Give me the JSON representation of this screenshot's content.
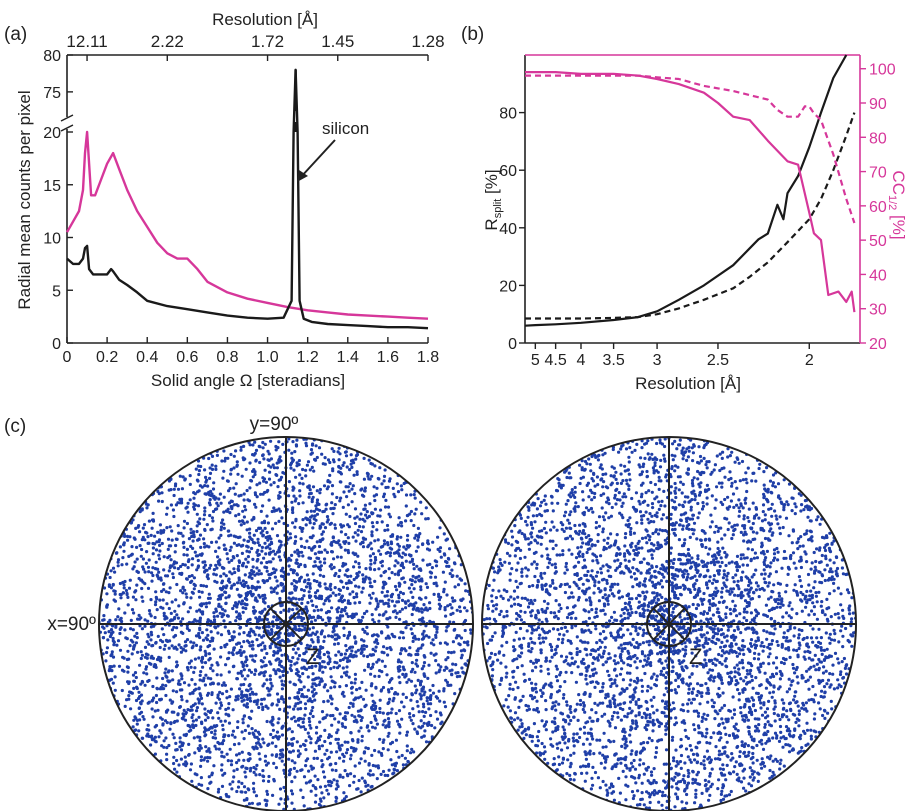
{
  "panels": {
    "a": "(a)",
    "b": "(b)",
    "c": "(c)"
  },
  "colors": {
    "axis": "#222222",
    "magenta": "#d6379a",
    "black_series": "#1a1a1a",
    "dots": "#1f3fa8"
  },
  "chart_data": [
    {
      "type": "line",
      "panel": "(a)",
      "xlabel": "Solid angle Ω [steradians]",
      "ylabel": "Radial mean counts per pixel",
      "top_axis_label": "Resolution [Å]",
      "top_ticks": [
        {
          "x": 0.1,
          "label": "12.11"
        },
        {
          "x": 0.5,
          "label": "2.22"
        },
        {
          "x": 1.0,
          "label": "1.72"
        },
        {
          "x": 1.35,
          "label": "1.45"
        },
        {
          "x": 1.8,
          "label": "1.28"
        }
      ],
      "xlim": [
        0,
        1.8
      ],
      "xticks": [
        0,
        0.2,
        0.4,
        0.6,
        0.8,
        1.0,
        1.2,
        1.4,
        1.6,
        1.8
      ],
      "xtick_labels": [
        "0",
        "0.2",
        "0.4",
        "0.6",
        "0.8",
        "1.0",
        "1.2",
        "1.4",
        "1.6",
        "1.8"
      ],
      "ylim_lower": [
        0,
        20
      ],
      "ylim_upper": [
        72,
        80
      ],
      "yticks_lower": [
        0,
        5,
        10,
        15,
        20
      ],
      "yticks_upper": [
        75,
        80
      ],
      "axis_break": true,
      "annotation": "silicon",
      "series": [
        {
          "color": "#d6379a",
          "x": [
            0,
            0.03,
            0.06,
            0.08,
            0.09,
            0.1,
            0.11,
            0.12,
            0.14,
            0.17,
            0.2,
            0.23,
            0.26,
            0.3,
            0.35,
            0.4,
            0.45,
            0.5,
            0.55,
            0.6,
            0.65,
            0.7,
            0.8,
            0.9,
            1.0,
            1.1,
            1.2,
            1.3,
            1.4,
            1.5,
            1.6,
            1.7,
            1.8
          ],
          "y": [
            10.5,
            11.5,
            12.5,
            14.5,
            18.0,
            20.0,
            17.0,
            14.0,
            14.0,
            15.5,
            17.0,
            18.0,
            16.5,
            14.5,
            12.5,
            11.0,
            9.5,
            8.5,
            8.0,
            8.0,
            7.0,
            5.8,
            4.8,
            4.2,
            3.8,
            3.4,
            3.1,
            2.9,
            2.7,
            2.6,
            2.5,
            2.4,
            2.3
          ]
        },
        {
          "color": "#1a1a1a",
          "x": [
            0,
            0.03,
            0.06,
            0.08,
            0.09,
            0.1,
            0.11,
            0.13,
            0.17,
            0.2,
            0.22,
            0.23,
            0.26,
            0.3,
            0.35,
            0.4,
            0.5,
            0.6,
            0.7,
            0.8,
            0.9,
            1.0,
            1.08,
            1.12,
            1.13,
            1.14,
            1.15,
            1.16,
            1.18,
            1.22,
            1.3,
            1.4,
            1.5,
            1.6,
            1.7,
            1.8
          ],
          "y": [
            8.0,
            7.5,
            7.5,
            8.0,
            9.0,
            9.2,
            7.0,
            6.5,
            6.5,
            6.5,
            7.0,
            6.8,
            6.0,
            5.5,
            4.8,
            4.0,
            3.5,
            3.2,
            2.9,
            2.6,
            2.4,
            2.3,
            2.4,
            4.0,
            20.0,
            78.0,
            20.0,
            4.0,
            2.3,
            2.0,
            1.8,
            1.7,
            1.6,
            1.5,
            1.5,
            1.4
          ]
        }
      ]
    },
    {
      "type": "line",
      "panel": "(b)",
      "xlabel": "Resolution [Å]",
      "ylabel": "R_split [%]",
      "ylabel_main": "R",
      "ylabel_sub": "split",
      "ylabel_tail": " [%]",
      "y2label_main": "CC",
      "y2label_sub": "1/2",
      "y2label_tail": " [%]",
      "x_axis_reciprocal": true,
      "xticks": [
        5,
        4.5,
        4,
        3.5,
        3,
        2.5,
        2
      ],
      "xtick_labels": [
        "5",
        "4.5",
        "4",
        "3.5",
        "3",
        "2.5",
        "2"
      ],
      "ylim": [
        0,
        100
      ],
      "yticks": [
        0,
        20,
        40,
        60,
        80
      ],
      "y2lim": [
        20,
        104
      ],
      "y2ticks": [
        20,
        30,
        40,
        50,
        60,
        70,
        80,
        90,
        100
      ],
      "series": [
        {
          "axis": "left",
          "color": "#1a1a1a",
          "style": "solid",
          "x": [
            5.3,
            5,
            4.5,
            4,
            3.5,
            3.2,
            3,
            2.8,
            2.6,
            2.4,
            2.25,
            2.2,
            2.15,
            2.12,
            2.1,
            2.05,
            2.0,
            1.95,
            1.9,
            1.85
          ],
          "y": [
            6,
            6.2,
            6.5,
            7,
            8,
            9,
            11,
            15,
            20,
            27,
            36,
            38,
            48,
            43,
            52,
            58,
            68,
            80,
            92,
            100
          ]
        },
        {
          "axis": "left",
          "color": "#1a1a1a",
          "style": "dashed",
          "x": [
            5.3,
            5,
            4.5,
            4,
            3.5,
            3.2,
            3,
            2.8,
            2.6,
            2.4,
            2.3,
            2.2,
            2.1,
            2.0,
            1.95,
            1.9,
            1.85,
            1.82
          ],
          "y": [
            8.5,
            8.5,
            8.5,
            8.5,
            8.7,
            9,
            10,
            12,
            15,
            19,
            23,
            28,
            35,
            43,
            50,
            60,
            72,
            80
          ]
        },
        {
          "axis": "right",
          "color": "#d6379a",
          "style": "solid",
          "x": [
            5.3,
            5,
            4.5,
            4,
            3.5,
            3.2,
            3,
            2.8,
            2.6,
            2.5,
            2.4,
            2.3,
            2.2,
            2.1,
            2.05,
            2.0,
            1.98,
            1.95,
            1.92,
            1.88,
            1.85,
            1.83,
            1.82
          ],
          "y": [
            99,
            99,
            99,
            98.5,
            98.5,
            98,
            97,
            95.5,
            93,
            90,
            86,
            85,
            79,
            73,
            72,
            58,
            52,
            50,
            34,
            35,
            32,
            35,
            29
          ]
        },
        {
          "axis": "right",
          "color": "#d6379a",
          "style": "dashed",
          "x": [
            5.3,
            5,
            4.5,
            4,
            3.5,
            3.2,
            3,
            2.8,
            2.6,
            2.4,
            2.2,
            2.15,
            2.1,
            2.05,
            2.02,
            2.0,
            1.98,
            1.95,
            1.9,
            1.85,
            1.82
          ],
          "y": [
            98,
            98,
            98,
            98,
            98,
            98,
            97.5,
            97,
            95,
            93.5,
            91,
            88,
            86,
            86,
            89,
            89,
            87,
            85,
            75,
            62,
            55
          ]
        }
      ]
    },
    {
      "type": "scatter",
      "panel": "(c)",
      "label_y": "y=90º",
      "label_x": "x=90º",
      "label_z": "Z",
      "circles": 2,
      "note": "two stereographic projections of crystal orientations, uniform random point distribution"
    }
  ]
}
